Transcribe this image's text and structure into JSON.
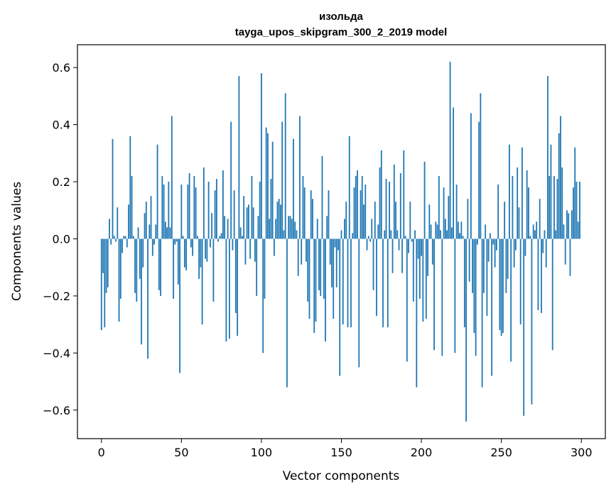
{
  "chart_data": {
    "type": "bar",
    "title": "изольда",
    "subtitle": "tayga_upos_skipgram_300_2_2019 model",
    "xlabel": "Vector components",
    "ylabel": "Components values",
    "xlim": [
      -15,
      315
    ],
    "ylim": [
      -0.7,
      0.68
    ],
    "xticks": [
      0,
      50,
      100,
      150,
      200,
      250,
      300
    ],
    "yticks": [
      -0.6,
      -0.4,
      -0.2,
      0.0,
      0.2,
      0.4,
      0.6
    ],
    "xtick_labels": [
      "0",
      "50",
      "100",
      "150",
      "200",
      "250",
      "300"
    ],
    "ytick_labels": [
      "−0.6",
      "−0.4",
      "−0.2",
      "0.0",
      "0.2",
      "0.4",
      "0.6"
    ],
    "bar_color": "#1f77b4",
    "grid": false,
    "x": [
      0,
      1,
      2,
      3,
      4,
      5,
      6,
      7,
      8,
      9,
      10,
      11,
      12,
      13,
      14,
      15,
      16,
      17,
      18,
      19,
      20,
      21,
      22,
      23,
      24,
      25,
      26,
      27,
      28,
      29,
      30,
      31,
      32,
      33,
      34,
      35,
      36,
      37,
      38,
      39,
      40,
      41,
      42,
      43,
      44,
      45,
      46,
      47,
      48,
      49,
      50,
      51,
      52,
      53,
      54,
      55,
      56,
      57,
      58,
      59,
      60,
      61,
      62,
      63,
      64,
      65,
      66,
      67,
      68,
      69,
      70,
      71,
      72,
      73,
      74,
      75,
      76,
      77,
      78,
      79,
      80,
      81,
      82,
      83,
      84,
      85,
      86,
      87,
      88,
      89,
      90,
      91,
      92,
      93,
      94,
      95,
      96,
      97,
      98,
      99,
      100,
      101,
      102,
      103,
      104,
      105,
      106,
      107,
      108,
      109,
      110,
      111,
      112,
      113,
      114,
      115,
      116,
      117,
      118,
      119,
      120,
      121,
      122,
      123,
      124,
      125,
      126,
      127,
      128,
      129,
      130,
      131,
      132,
      133,
      134,
      135,
      136,
      137,
      138,
      139,
      140,
      141,
      142,
      143,
      144,
      145,
      146,
      147,
      148,
      149,
      150,
      151,
      152,
      153,
      154,
      155,
      156,
      157,
      158,
      159,
      160,
      161,
      162,
      163,
      164,
      165,
      166,
      167,
      168,
      169,
      170,
      171,
      172,
      173,
      174,
      175,
      176,
      177,
      178,
      179,
      180,
      181,
      182,
      183,
      184,
      185,
      186,
      187,
      188,
      189,
      190,
      191,
      192,
      193,
      194,
      195,
      196,
      197,
      198,
      199,
      200,
      201,
      202,
      203,
      204,
      205,
      206,
      207,
      208,
      209,
      210,
      211,
      212,
      213,
      214,
      215,
      216,
      217,
      218,
      219,
      220,
      221,
      222,
      223,
      224,
      225,
      226,
      227,
      228,
      229,
      230,
      231,
      232,
      233,
      234,
      235,
      236,
      237,
      238,
      239,
      240,
      241,
      242,
      243,
      244,
      245,
      246,
      247,
      248,
      249,
      250,
      251,
      252,
      253,
      254,
      255,
      256,
      257,
      258,
      259,
      260,
      261,
      262,
      263,
      264,
      265,
      266,
      267,
      268,
      269,
      270,
      271,
      272,
      273,
      274,
      275,
      276,
      277,
      278,
      279,
      280,
      281,
      282,
      283,
      284,
      285,
      286,
      287,
      288,
      289,
      290,
      291,
      292,
      293,
      294,
      295,
      296,
      297,
      298,
      299
    ],
    "values": [
      -0.32,
      -0.12,
      -0.31,
      -0.19,
      -0.17,
      0.07,
      -0.02,
      0.35,
      0.01,
      -0.01,
      0.11,
      -0.29,
      -0.21,
      -0.05,
      0.01,
      0.01,
      -0.03,
      0.12,
      0.36,
      0.22,
      0.01,
      -0.19,
      -0.22,
      0.04,
      -0.14,
      -0.37,
      -0.1,
      0.09,
      0.13,
      -0.42,
      0.05,
      0.15,
      -0.06,
      -0.02,
      0.05,
      0.33,
      -0.18,
      -0.2,
      0.22,
      0.19,
      0.06,
      0.04,
      0.2,
      0.04,
      0.43,
      -0.21,
      -0.02,
      -0.01,
      -0.16,
      -0.47,
      0.19,
      0.01,
      -0.1,
      -0.11,
      0.19,
      0.23,
      -0.03,
      -0.06,
      0.22,
      0.18,
      0.01,
      -0.14,
      -0.1,
      -0.3,
      0.25,
      -0.07,
      -0.08,
      0.2,
      -0.03,
      0.09,
      -0.22,
      0.17,
      0.21,
      -0.01,
      0.01,
      0.02,
      0.24,
      0.08,
      -0.36,
      0.07,
      -0.35,
      0.41,
      -0.04,
      0.17,
      -0.26,
      -0.34,
      0.57,
      0.04,
      0.01,
      0.15,
      -0.09,
      0.11,
      0.12,
      -0.07,
      0.22,
      0.11,
      -0.08,
      -0.2,
      0.08,
      0.2,
      0.58,
      -0.4,
      -0.21,
      0.39,
      0.37,
      0.07,
      0.21,
      0.34,
      -0.06,
      0.07,
      0.13,
      0.14,
      0.12,
      0.41,
      0.03,
      0.51,
      -0.52,
      0.08,
      0.08,
      0.07,
      0.35,
      0.06,
      0.03,
      -0.13,
      0.43,
      -0.09,
      0.22,
      0.18,
      -0.08,
      -0.22,
      -0.28,
      0.17,
      0.14,
      -0.33,
      -0.29,
      0.07,
      -0.18,
      -0.2,
      0.29,
      -0.21,
      -0.36,
      0.08,
      0.17,
      -0.09,
      -0.17,
      -0.28,
      -0.03,
      -0.17,
      -0.04,
      -0.48,
      0.03,
      -0.3,
      0.07,
      0.13,
      -0.31,
      0.36,
      -0.31,
      0.02,
      0.18,
      0.22,
      0.24,
      -0.45,
      0.17,
      0.22,
      0.12,
      0.19,
      -0.04,
      0.01,
      -0.01,
      0.07,
      -0.18,
      0.13,
      -0.27,
      0.05,
      0.25,
      0.31,
      -0.31,
      0.03,
      0.21,
      -0.31,
      0.2,
      0.03,
      -0.12,
      0.26,
      0.13,
      0.03,
      -0.04,
      0.23,
      -0.12,
      0.31,
      0.01,
      -0.43,
      -0.05,
      0.13,
      -0.01,
      -0.22,
      0.03,
      -0.52,
      -0.07,
      -0.21,
      -0.06,
      -0.29,
      0.27,
      -0.28,
      -0.13,
      0.12,
      0.05,
      -0.09,
      -0.39,
      0.06,
      0.05,
      0.22,
      0.03,
      -0.41,
      0.18,
      0.07,
      0.03,
      0.15,
      0.62,
      0.04,
      0.46,
      -0.4,
      0.19,
      0.06,
      0.02,
      0.06,
      0.01,
      -0.31,
      -0.64,
      0.14,
      -0.15,
      0.44,
      -0.19,
      -0.33,
      -0.41,
      -0.02,
      0.41,
      0.51,
      -0.52,
      -0.19,
      0.05,
      -0.27,
      -0.08,
      0.02,
      -0.48,
      -0.02,
      -0.1,
      -0.04,
      0.19,
      -0.32,
      -0.34,
      -0.33,
      0.13,
      -0.19,
      -0.14,
      0.33,
      -0.43,
      0.22,
      -0.1,
      -0.04,
      0.25,
      0.11,
      -0.3,
      0.32,
      -0.62,
      -0.06,
      0.24,
      0.18,
      0.01,
      -0.58,
      0.05,
      0.03,
      0.06,
      -0.25,
      0.14,
      -0.26,
      -0.05,
      0.03,
      -0.1,
      0.57,
      0.22,
      0.33,
      -0.39,
      0.22,
      0.03,
      0.21,
      0.37,
      0.43,
      0.25,
      0.05,
      -0.09,
      0.1,
      0.09,
      -0.13,
      0.1,
      0.18,
      0.32,
      0.2,
      0.06,
      0.2
    ]
  }
}
